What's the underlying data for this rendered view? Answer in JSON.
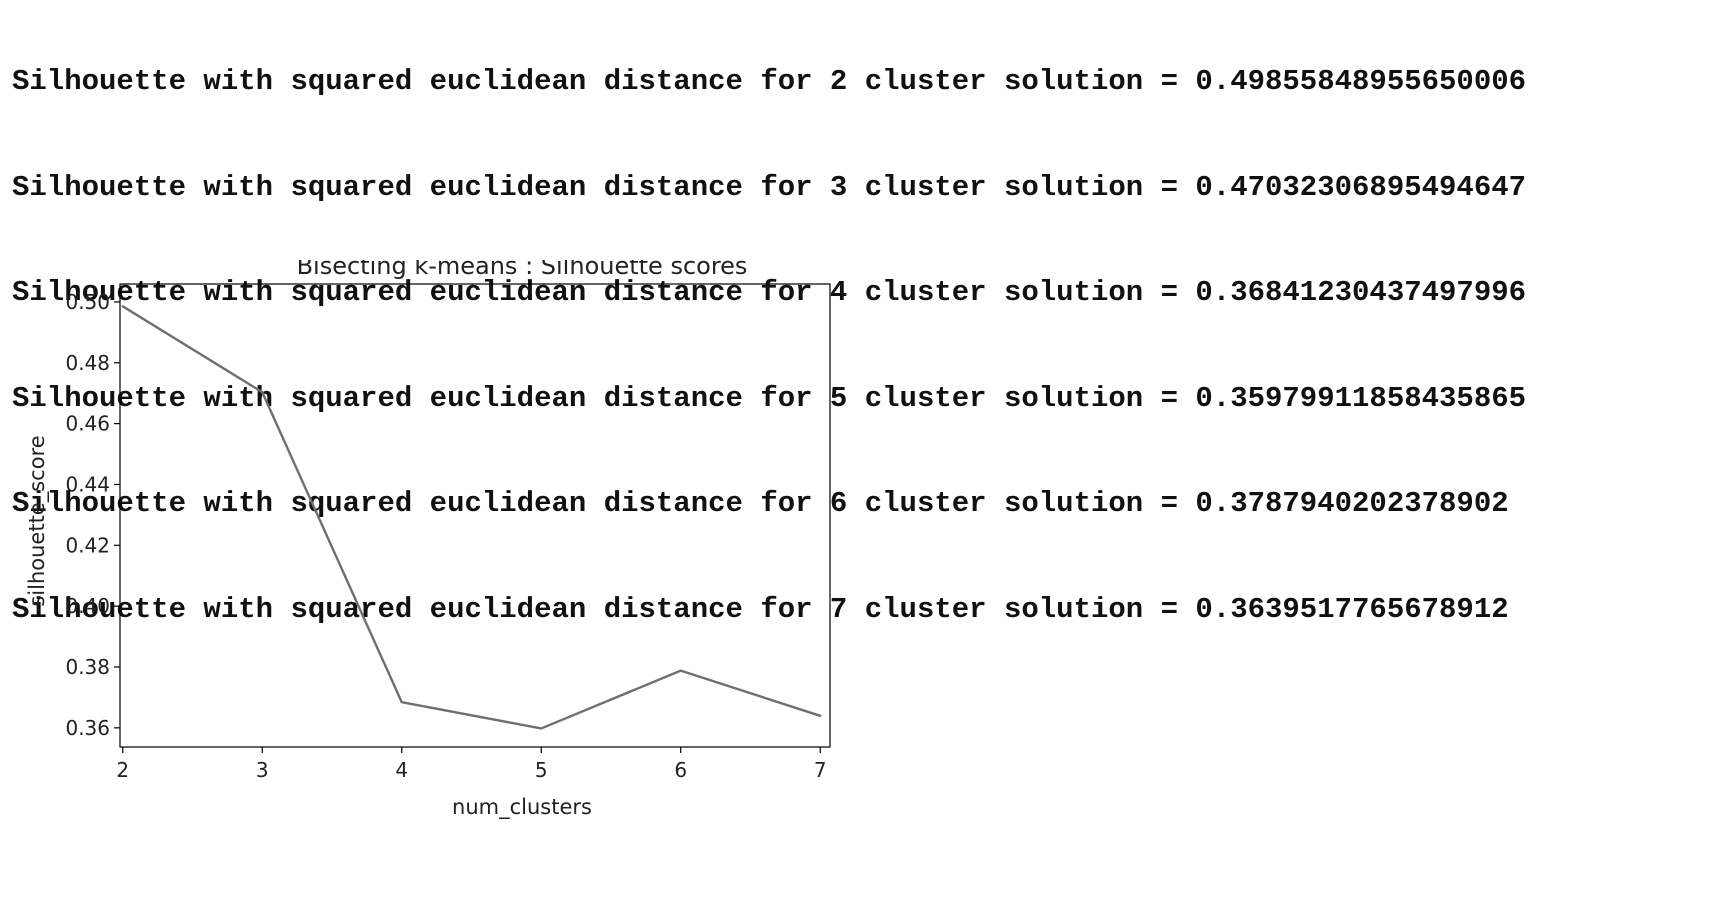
{
  "output": {
    "lines": [
      "Silhouette with squared euclidean distance for 2 cluster solution = 0.4985584895565000​6",
      "Silhouette with squared euclidean distance for 3 cluster solution = 0.47032306895494647",
      "Silhouette with squared euclidean distance for 4 cluster solution = 0.36841230437497996",
      "Silhouette with squared euclidean distance for 5 cluster solution = 0.35979911858435865",
      "Silhouette with squared euclidean distance for 6 cluster solution = 0.3787940202378902",
      "Silhouette with squared euclidean distance for 7 cluster solution = 0.3639517765678912"
    ]
  },
  "chart_data": {
    "type": "line",
    "title": "Bisecting k-means : Silhouette scores",
    "xlabel": "num_clusters",
    "ylabel": "silhouette_score",
    "x": [
      2,
      3,
      4,
      5,
      6,
      7
    ],
    "series": [
      {
        "values": [
          0.49855848955650006,
          0.47032306895494647,
          0.36841230437497996,
          0.35979911858435865,
          0.3787940202378902,
          0.3639517765678912
        ],
        "color": "#6f6f6f"
      }
    ],
    "xticks": [
      "2",
      "3",
      "4",
      "5",
      "6",
      "7"
    ],
    "yticks": [
      "0.36",
      "0.38",
      "0.40",
      "0.42",
      "0.44",
      "0.46",
      "0.48",
      "0.50"
    ],
    "xlim": [
      1.98,
      7.07
    ],
    "ylim": [
      0.3537,
      0.5059
    ],
    "grid": false,
    "legend": false
  }
}
